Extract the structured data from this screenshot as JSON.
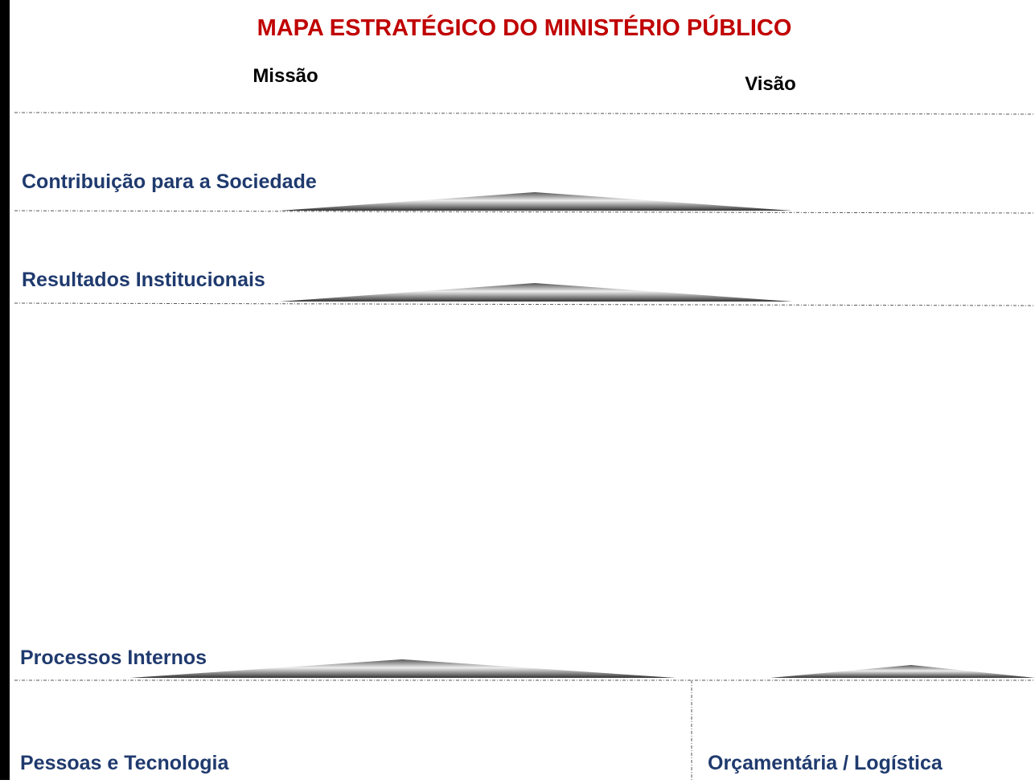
{
  "title": "MAPA ESTRATÉGICO DO MINISTÉRIO PÚBLICO",
  "header": {
    "mission": "Missão",
    "vision": "Visão"
  },
  "perspectives": [
    "Contribuição para a Sociedade",
    "Resultados Institucionais",
    "Processos Internos",
    "Pessoas e Tecnologia",
    "Orçamentária / Logística"
  ]
}
